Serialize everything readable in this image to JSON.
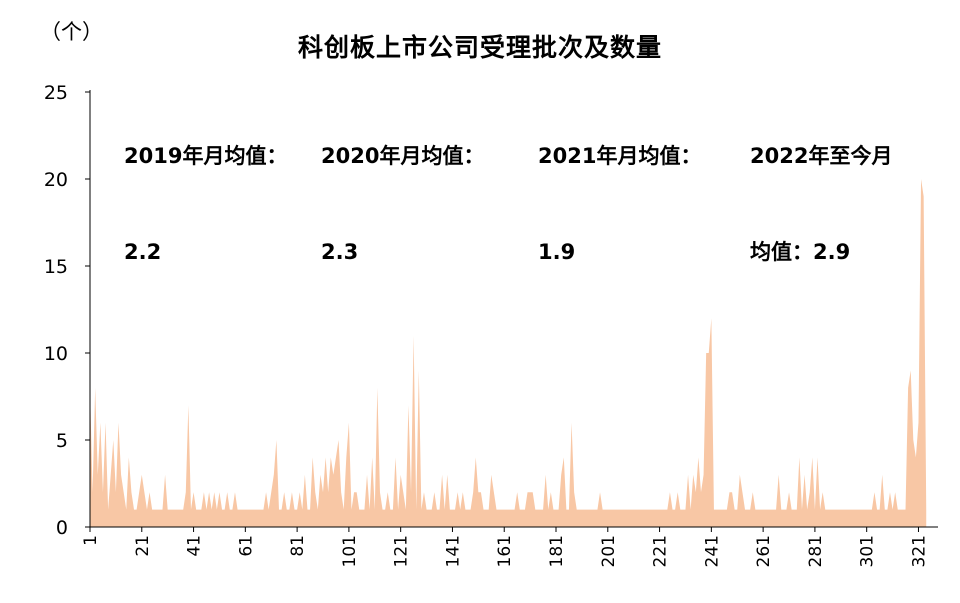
{
  "chart_data": {
    "type": "area",
    "title": "科创板上市公司受理批次及数量",
    "unit_label": "（个）",
    "ylim": [
      0,
      25
    ],
    "y_ticks": [
      0,
      5,
      10,
      15,
      20,
      25
    ],
    "x_ticks": [
      1,
      21,
      41,
      61,
      81,
      101,
      121,
      141,
      161,
      181,
      201,
      221,
      241,
      261,
      281,
      301,
      321
    ],
    "xlim": [
      1,
      327
    ],
    "fill_color": "#F8C7A5",
    "grid": false,
    "legend": "none",
    "annotations": [
      {
        "line1": "2019年月均值：",
        "line2": "2.2"
      },
      {
        "line1": "2020年月均值：",
        "line2": "2.3"
      },
      {
        "line1": "2021年月均值：",
        "line2": "1.9"
      },
      {
        "line1": "2022年至今月",
        "line2": "均值：2.9"
      }
    ],
    "series": [
      {
        "values": [
          8,
          2,
          8,
          3,
          6,
          2,
          6,
          1,
          3,
          5,
          2,
          6,
          3,
          2,
          1,
          4,
          2,
          1,
          1,
          2,
          3,
          2,
          1,
          2,
          1,
          1,
          1,
          1,
          1,
          3,
          1,
          1,
          1,
          1,
          1,
          1,
          1,
          2,
          7,
          1,
          2,
          1,
          1,
          1,
          2,
          1,
          2,
          1,
          2,
          1,
          2,
          1,
          1,
          2,
          1,
          1,
          2,
          1,
          1,
          1,
          1,
          1,
          1,
          1,
          1,
          1,
          1,
          1,
          2,
          1,
          2,
          3,
          5,
          1,
          1,
          2,
          1,
          1,
          2,
          1,
          1,
          2,
          1,
          3,
          1,
          1,
          4,
          2,
          1,
          3,
          2,
          4,
          2,
          4,
          3,
          4,
          5,
          2,
          1,
          4,
          6,
          1,
          2,
          2,
          1,
          1,
          1,
          3,
          1,
          4,
          1,
          8,
          2,
          1,
          1,
          2,
          1,
          1,
          4,
          1,
          3,
          2,
          1,
          7,
          2,
          11,
          1,
          9,
          1,
          2,
          1,
          1,
          1,
          2,
          1,
          1,
          3,
          1,
          3,
          1,
          1,
          1,
          2,
          1,
          2,
          1,
          1,
          1,
          2,
          4,
          2,
          2,
          1,
          1,
          1,
          3,
          2,
          1,
          1,
          1,
          1,
          1,
          1,
          1,
          1,
          2,
          1,
          1,
          1,
          2,
          2,
          2,
          1,
          1,
          1,
          1,
          3,
          1,
          2,
          1,
          1,
          1,
          3,
          4,
          1,
          1,
          6,
          2,
          1,
          1,
          1,
          1,
          1,
          1,
          1,
          1,
          1,
          2,
          1,
          1,
          1,
          1,
          1,
          1,
          1,
          1,
          1,
          1,
          1,
          1,
          1,
          1,
          1,
          1,
          1,
          1,
          1,
          1,
          1,
          1,
          1,
          1,
          1,
          1,
          2,
          1,
          1,
          2,
          1,
          1,
          1,
          3,
          1,
          3,
          2,
          4,
          2,
          3,
          10,
          10,
          12,
          1,
          1,
          1,
          1,
          1,
          1,
          2,
          2,
          1,
          1,
          3,
          2,
          1,
          1,
          1,
          2,
          1,
          1,
          1,
          1,
          1,
          1,
          1,
          1,
          1,
          3,
          1,
          1,
          1,
          2,
          1,
          1,
          1,
          4,
          1,
          3,
          1,
          2,
          4,
          1,
          4,
          1,
          2,
          1,
          1,
          1,
          1,
          1,
          1,
          1,
          1,
          1,
          1,
          1,
          1,
          1,
          1,
          1,
          1,
          1,
          1,
          1,
          2,
          1,
          1,
          3,
          1,
          1,
          2,
          1,
          2,
          1,
          1,
          1,
          1,
          8,
          9,
          5,
          4,
          6,
          20,
          19,
          1
        ]
      }
    ]
  }
}
